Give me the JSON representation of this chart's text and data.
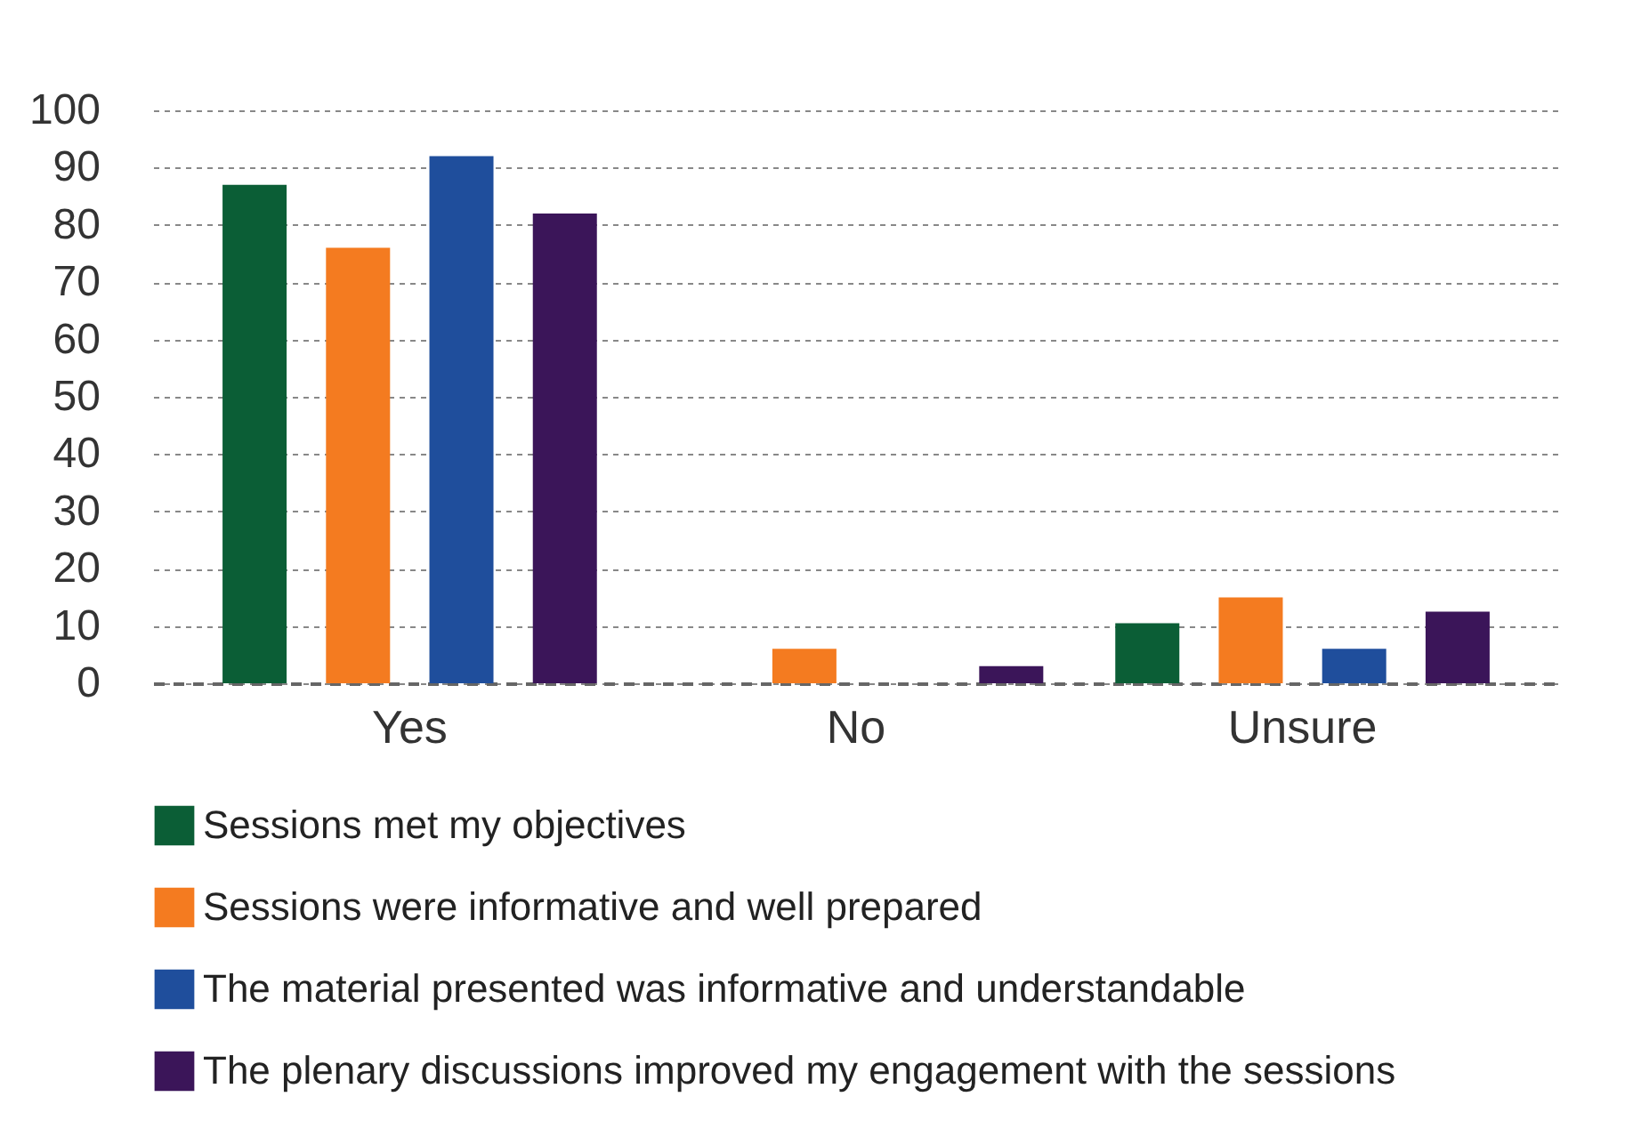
{
  "chart_data": {
    "type": "bar",
    "categories": [
      "Yes",
      "No",
      "Unsure"
    ],
    "series": [
      {
        "name": "Sessions met my objectives",
        "color": "#0b5e36",
        "values": [
          87,
          0,
          10.5
        ]
      },
      {
        "name": "Sessions were informative and well prepared",
        "color": "#f47b20",
        "values": [
          76,
          6,
          15
        ]
      },
      {
        "name": "The material presented was informative and understandable",
        "color": "#1f4e9c",
        "values": [
          92,
          0,
          6
        ]
      },
      {
        "name": "The plenary discussions improved my engagement with the sessions",
        "color": "#3b1559",
        "values": [
          82,
          3,
          12.5
        ]
      }
    ],
    "ylim": [
      0,
      100
    ],
    "yticks": [
      0,
      10,
      20,
      30,
      40,
      50,
      60,
      70,
      80,
      90,
      100
    ],
    "grid": "y",
    "legend": "bottom"
  }
}
